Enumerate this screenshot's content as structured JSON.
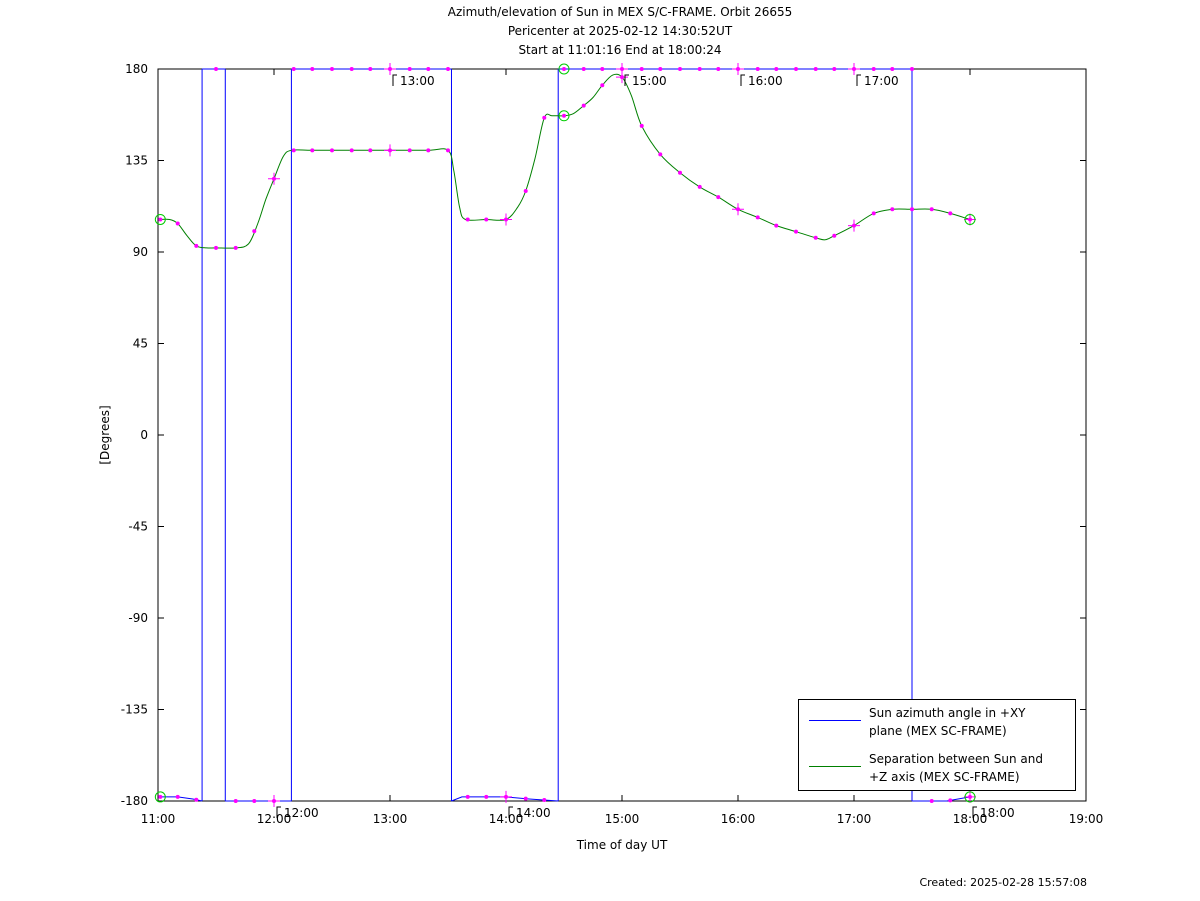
{
  "header": {
    "title_line1": "Azimuth/elevation of Sun in MEX S/C-FRAME.  Orbit 26655",
    "title_line2": "Pericenter at 2025-02-12 14:30:52UT",
    "title_line3": "Start at 11:01:16 End at 18:00:24"
  },
  "footer": {
    "created": "Created: 2025-02-28 15:57:08"
  },
  "legend": {
    "azimuth_label": "Sun azimuth angle in +XY\nplane (MEX SC-FRAME)",
    "separation_label": "Separation between Sun and\n+Z axis (MEX SC-FRAME)"
  },
  "colors": {
    "azimuth": "#0000ff",
    "separation": "#008000",
    "markers": "#ff00ff",
    "axes": "#000000"
  },
  "chart_data": {
    "type": "line",
    "title": "Azimuth/elevation of Sun in MEX S/C-FRAME.  Orbit 26655",
    "xlabel": "Time of day UT",
    "ylabel": "[Degrees]",
    "xlim": [
      11.0,
      19.0
    ],
    "ylim": [
      -180,
      180
    ],
    "xticks": [
      {
        "v": 11,
        "label": "11:00"
      },
      {
        "v": 12,
        "label": "12:00"
      },
      {
        "v": 13,
        "label": "13:00"
      },
      {
        "v": 14,
        "label": "14:00"
      },
      {
        "v": 15,
        "label": "15:00"
      },
      {
        "v": 16,
        "label": "16:00"
      },
      {
        "v": 17,
        "label": "17:00"
      },
      {
        "v": 18,
        "label": "18:00"
      },
      {
        "v": 19,
        "label": "19:00"
      }
    ],
    "yticks": [
      180,
      135,
      90,
      45,
      0,
      -45,
      -90,
      -135,
      -180
    ],
    "hour_annotations": [
      {
        "x": 12.0,
        "y": -180,
        "label": "12:00"
      },
      {
        "x": 13.0,
        "y": 180,
        "label": "13:00"
      },
      {
        "x": 14.0,
        "y": -180,
        "label": "14:00"
      },
      {
        "x": 15.0,
        "y": 180,
        "label": "15:00"
      },
      {
        "x": 16.0,
        "y": 180,
        "label": "16:00"
      },
      {
        "x": 17.0,
        "y": 180,
        "label": "17:00"
      },
      {
        "x": 18.0,
        "y": -180,
        "label": "18:00"
      }
    ],
    "series": [
      {
        "name": "Sun azimuth angle in +XY plane (MEX SC-FRAME)",
        "color": "#0000ff",
        "segments": [
          [
            [
              11.02,
              -178
            ],
            [
              11.17,
              -178
            ],
            [
              11.3,
              -179
            ],
            [
              11.38,
              -180
            ]
          ],
          [
            [
              11.38,
              180
            ],
            [
              11.58,
              180
            ]
          ],
          [
            [
              11.58,
              -180
            ],
            [
              12.0,
              -180
            ],
            [
              12.15,
              -180
            ]
          ],
          [
            [
              12.15,
              180
            ],
            [
              13.0,
              180
            ],
            [
              13.53,
              180
            ]
          ],
          [
            [
              13.53,
              -180
            ],
            [
              13.62,
              -178
            ],
            [
              14.0,
              -178
            ],
            [
              14.2,
              -179
            ],
            [
              14.45,
              -180
            ]
          ],
          [
            [
              14.45,
              180
            ],
            [
              15.0,
              180
            ],
            [
              16.0,
              180
            ],
            [
              17.0,
              180
            ],
            [
              17.5,
              180
            ]
          ],
          [
            [
              17.5,
              -180
            ],
            [
              17.8,
              -180
            ],
            [
              18.0,
              -178
            ]
          ]
        ]
      },
      {
        "name": "Separation between Sun and +Z axis (MEX SC-FRAME)",
        "color": "#008000",
        "points": [
          [
            11.02,
            106
          ],
          [
            11.1,
            106
          ],
          [
            11.17,
            104
          ],
          [
            11.25,
            98
          ],
          [
            11.33,
            93
          ],
          [
            11.42,
            92
          ],
          [
            11.5,
            92
          ],
          [
            11.67,
            92
          ],
          [
            11.78,
            94
          ],
          [
            11.86,
            104
          ],
          [
            11.93,
            116
          ],
          [
            12.0,
            126
          ],
          [
            12.08,
            137
          ],
          [
            12.15,
            140
          ],
          [
            12.33,
            140
          ],
          [
            12.67,
            140
          ],
          [
            13.0,
            140
          ],
          [
            13.33,
            140
          ],
          [
            13.5,
            140
          ],
          [
            13.55,
            130
          ],
          [
            13.6,
            112
          ],
          [
            13.65,
            106
          ],
          [
            13.83,
            106
          ],
          [
            14.0,
            106
          ],
          [
            14.1,
            112
          ],
          [
            14.17,
            120
          ],
          [
            14.25,
            136
          ],
          [
            14.33,
            156
          ],
          [
            14.4,
            157
          ],
          [
            14.5,
            157
          ],
          [
            14.58,
            158
          ],
          [
            14.67,
            162
          ],
          [
            14.75,
            166
          ],
          [
            14.83,
            172
          ],
          [
            14.92,
            177
          ],
          [
            15.0,
            176
          ],
          [
            15.08,
            167
          ],
          [
            15.17,
            152
          ],
          [
            15.33,
            138
          ],
          [
            15.5,
            129
          ],
          [
            15.67,
            122
          ],
          [
            15.83,
            117
          ],
          [
            16.0,
            111
          ],
          [
            16.17,
            107
          ],
          [
            16.33,
            103
          ],
          [
            16.5,
            100
          ],
          [
            16.67,
            97
          ],
          [
            16.75,
            96
          ],
          [
            16.83,
            98
          ],
          [
            17.0,
            103
          ],
          [
            17.17,
            109
          ],
          [
            17.33,
            111
          ],
          [
            17.5,
            111
          ],
          [
            17.67,
            111
          ],
          [
            17.83,
            109
          ],
          [
            18.0,
            106
          ]
        ]
      }
    ],
    "marker_times": [
      11.02,
      11.17,
      11.33,
      11.5,
      11.67,
      11.83,
      12.0,
      12.17,
      12.33,
      12.5,
      12.67,
      12.83,
      13.0,
      13.17,
      13.33,
      13.5,
      13.67,
      13.83,
      14.0,
      14.17,
      14.33,
      14.5,
      14.67,
      14.83,
      15.0,
      15.17,
      15.33,
      15.5,
      15.67,
      15.83,
      16.0,
      16.17,
      16.33,
      16.5,
      16.67,
      16.83,
      17.0,
      17.17,
      17.33,
      17.5,
      17.67,
      17.83,
      18.0
    ],
    "hour_marker_times": [
      12.0,
      13.0,
      14.0,
      15.0,
      16.0,
      17.0,
      18.0
    ],
    "circle_marker_times": [
      11.02,
      14.5,
      18.0
    ]
  }
}
